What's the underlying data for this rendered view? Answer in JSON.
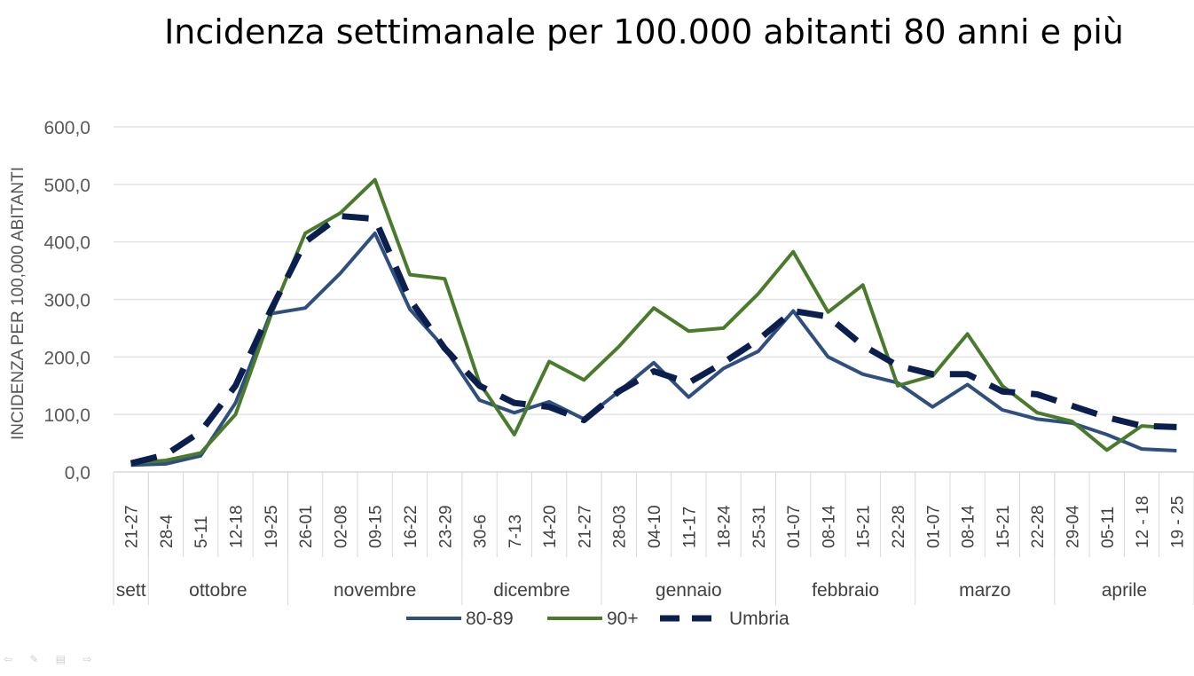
{
  "chart_data": {
    "type": "line",
    "title": "Incidenza settimanale per 100.000 abitanti 80 anni e più",
    "ylabel": "INCIDENZA PER 100,000 ABITANTI",
    "xlabel": "",
    "ylim": [
      0,
      600
    ],
    "yticks": [
      "0,0",
      "100,0",
      "200,0",
      "300,0",
      "400,0",
      "500,0",
      "600,0"
    ],
    "ytick_values": [
      0,
      100,
      200,
      300,
      400,
      500,
      600
    ],
    "grid": true,
    "legend_position": "bottom",
    "categories": [
      "21-27",
      "28-4",
      "5-11",
      "12-18",
      "19-25",
      "26-01",
      "02-08",
      "09-15",
      "16-22",
      "23-29",
      "30-6",
      "7-13",
      "14-20",
      "21-27",
      "28-03",
      "04-10",
      "11-17",
      "18-24",
      "25-31",
      "01-07",
      "08-14",
      "15-21",
      "22-28",
      "01-07",
      "08-14",
      "15-21",
      "22-28",
      "29-04",
      "05-11",
      "12 - 18",
      "19 - 25"
    ],
    "months": [
      {
        "label": "sett",
        "start": 0,
        "end": 0
      },
      {
        "label": "ottobre",
        "start": 1,
        "end": 4
      },
      {
        "label": "novembre",
        "start": 5,
        "end": 9
      },
      {
        "label": "dicembre",
        "start": 10,
        "end": 13
      },
      {
        "label": "gennaio",
        "start": 14,
        "end": 18
      },
      {
        "label": "febbraio",
        "start": 19,
        "end": 22
      },
      {
        "label": "marzo",
        "start": 23,
        "end": 26
      },
      {
        "label": "aprile",
        "start": 27,
        "end": 30
      }
    ],
    "series": [
      {
        "name": "80-89",
        "color": "#2f4f7f",
        "style": "solid",
        "values": [
          12,
          14,
          28,
          120,
          275,
          285,
          345,
          415,
          283,
          215,
          125,
          103,
          122,
          92,
          140,
          190,
          130,
          180,
          210,
          280,
          200,
          170,
          155,
          113,
          152,
          108,
          92,
          85,
          65,
          40,
          37
        ]
      },
      {
        "name": "90+",
        "color": "#4a7a2c",
        "style": "solid",
        "values": [
          15,
          20,
          33,
          100,
          270,
          415,
          450,
          508,
          343,
          336,
          155,
          65,
          192,
          160,
          218,
          285,
          245,
          250,
          310,
          383,
          278,
          325,
          150,
          167,
          240,
          150,
          103,
          88,
          38,
          80,
          76
        ]
      },
      {
        "name": "Umbria",
        "color": "#0b1f4f",
        "style": "dashed",
        "values": [
          15,
          30,
          70,
          150,
          280,
          400,
          445,
          440,
          300,
          215,
          150,
          120,
          113,
          90,
          140,
          175,
          155,
          190,
          230,
          280,
          270,
          220,
          185,
          170,
          170,
          140,
          135,
          115,
          95,
          80,
          78
        ]
      }
    ]
  }
}
